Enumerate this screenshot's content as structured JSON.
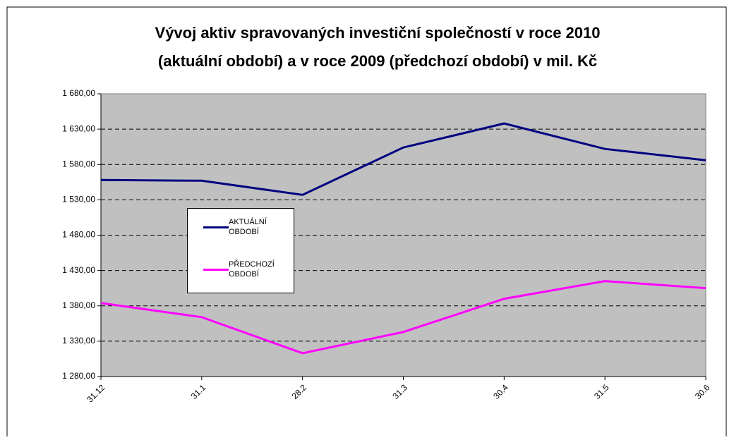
{
  "chart_data": {
    "type": "line",
    "title": [
      "Vývoj aktiv spravovaných investiční společností v roce 2010",
      "(aktuální období) a v roce 2009 (předchozí období) v mil. Kč"
    ],
    "categories": [
      "31.12",
      "31.1",
      "28.2",
      "31.3",
      "30.4",
      "31.5",
      "30.6"
    ],
    "series": [
      {
        "name": "AKTUÁLNÍ OBDOBÍ",
        "color": "#000080",
        "values": [
          1558,
          1557,
          1537,
          1604,
          1638,
          1602,
          1586
        ]
      },
      {
        "name": "PŘEDCHOZÍ OBDOBÍ",
        "color": "#ff00ff",
        "values": [
          1384,
          1364,
          1313,
          1343,
          1390,
          1415,
          1405
        ]
      }
    ],
    "ylim": [
      1280,
      1680
    ],
    "yticks": [
      {
        "value": 1280,
        "label": "1 280,00"
      },
      {
        "value": 1330,
        "label": "1 330,00"
      },
      {
        "value": 1380,
        "label": "1 380,00"
      },
      {
        "value": 1430,
        "label": "1 430,00"
      },
      {
        "value": 1480,
        "label": "1 480,00"
      },
      {
        "value": 1530,
        "label": "1 530,00"
      },
      {
        "value": 1580,
        "label": "1 580,00"
      },
      {
        "value": 1630,
        "label": "1 630,00"
      },
      {
        "value": 1680,
        "label": "1 680,00"
      }
    ],
    "grid": true,
    "plot_background": "#c0c0c0"
  }
}
